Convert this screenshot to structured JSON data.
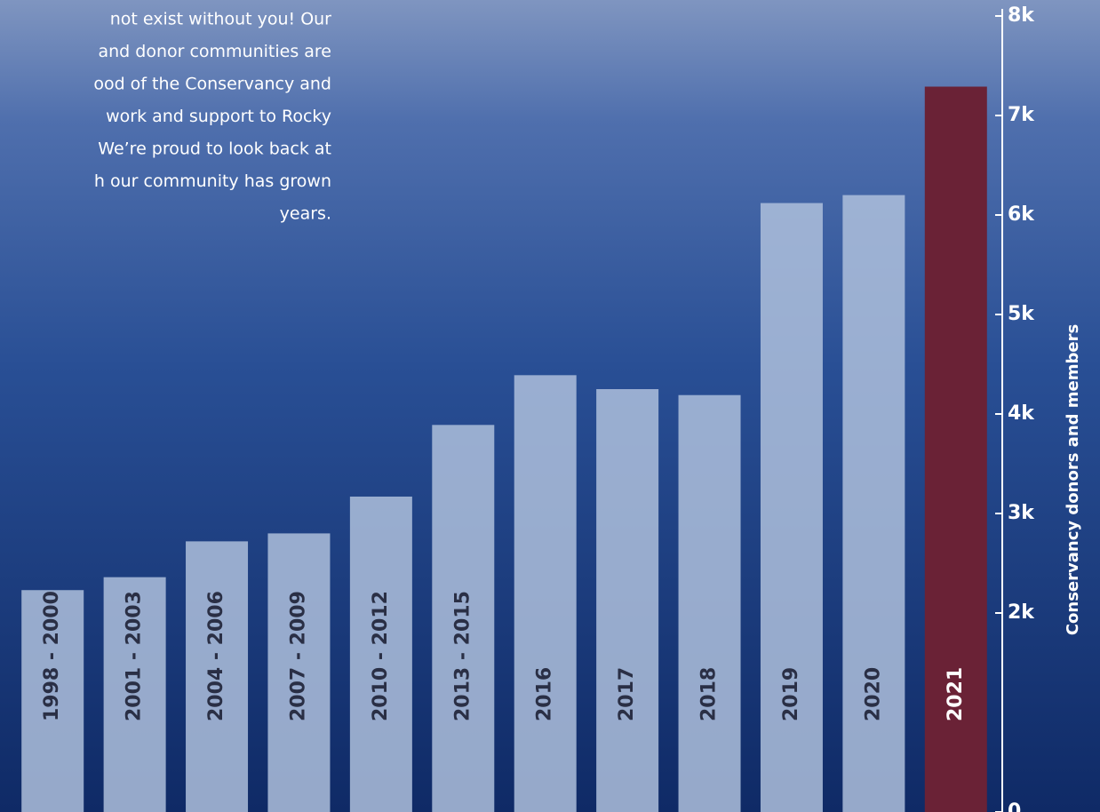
{
  "chart_data": {
    "type": "bar",
    "annotation_lines": [
      "not exist without you! Our",
      "and donor communities are",
      "ood of the Conservancy and",
      " work and support to Rocky",
      "We’re proud to look back at",
      "h our community has grown",
      "years."
    ],
    "y_label": "Conservancy donors and members",
    "categories": [
      "1998 - 2000",
      "2001 - 2003",
      "2004 - 2006",
      "2007 - 2009",
      "2010 - 2012",
      "2013 - 2015",
      "2016",
      "2017",
      "2018",
      "2019",
      "2020",
      "2021"
    ],
    "values": [
      2230,
      2360,
      2720,
      2800,
      3170,
      3890,
      4390,
      4250,
      4190,
      6120,
      6200,
      7290
    ],
    "colors": [
      "#aebfdc",
      "#aebfdc",
      "#aebfdc",
      "#aebfdc",
      "#aebfdc",
      "#aebfdc",
      "#aebfdc",
      "#aebfdc",
      "#aebfdc",
      "#aebfdc",
      "#aebfdc",
      "#6a2236"
    ],
    "ylim": [
      0,
      8000
    ],
    "yticks": [
      0,
      {
        "value": 2000,
        "label": "2k"
      },
      {
        "value": 3000,
        "label": "3k"
      },
      {
        "value": 4000,
        "label": "4k"
      },
      {
        "value": 5000,
        "label": "5k"
      },
      {
        "value": 6000,
        "label": "6k"
      },
      {
        "value": 7000,
        "label": "7k"
      },
      {
        "value": 8000,
        "label": "8k"
      }
    ]
  }
}
